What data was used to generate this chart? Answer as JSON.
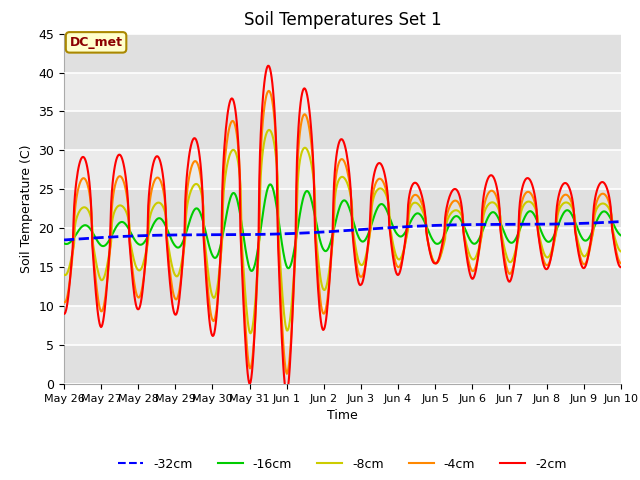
{
  "title": "Soil Temperatures Set 1",
  "xlabel": "Time",
  "ylabel": "Soil Temperature (C)",
  "ylim": [
    0,
    45
  ],
  "yticks": [
    0,
    5,
    10,
    15,
    20,
    25,
    30,
    35,
    40,
    45
  ],
  "bg_color": "#e8e8e8",
  "legend_entries": [
    "-32cm",
    "-16cm",
    "-8cm",
    "-4cm",
    "-2cm"
  ],
  "annotation_text": "DC_met",
  "tick_labels": [
    "May 26",
    "May 27",
    "May 28",
    "May 29",
    "May 30",
    "May 31",
    "Jun 1",
    "Jun 2",
    "Jun 3",
    "Jun 4",
    "Jun 5",
    "Jun 6",
    "Jun 7",
    "Jun 8",
    "Jun 9",
    "Jun 10"
  ],
  "colors": {
    "32cm": "#0000ff",
    "16cm": "#00cc00",
    "8cm": "#cccc00",
    "4cm": "#ff8800",
    "2cm": "#ff0000"
  }
}
